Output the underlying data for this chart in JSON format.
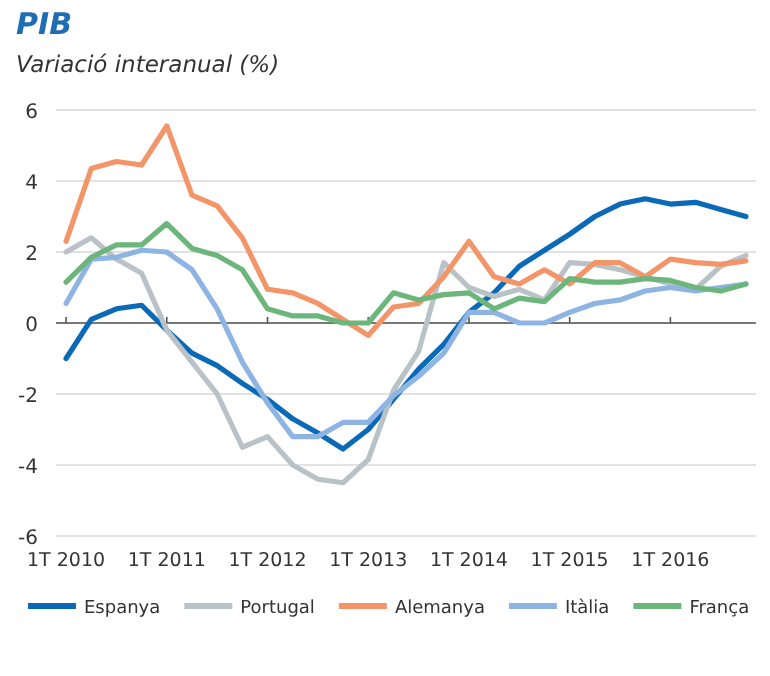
{
  "chart_data": {
    "type": "line",
    "title": "PIB",
    "subtitle": "Variació interanual (%)",
    "categories": [
      "1T 2010",
      null,
      null,
      null,
      "1T 2011",
      null,
      null,
      null,
      "1T 2012",
      null,
      null,
      null,
      "1T 2013",
      null,
      null,
      null,
      "1T 2014",
      null,
      null,
      null,
      "1T 2015",
      null,
      null,
      null,
      "1T 2016",
      null,
      null,
      null
    ],
    "ylim": [
      -6,
      6
    ],
    "yticks": [
      -6,
      -4,
      -2,
      0,
      2,
      4,
      6
    ],
    "grid": "y",
    "legend": "bottom",
    "line_style": "solid",
    "series": [
      {
        "name": "Espanya",
        "color": "#0a6ab7",
        "values": [
          -1.0,
          0.1,
          0.4,
          0.5,
          -0.2,
          -0.85,
          -1.2,
          -1.7,
          -2.15,
          -2.7,
          -3.1,
          -3.55,
          -3.0,
          -2.15,
          -1.3,
          -0.6,
          0.3,
          0.85,
          1.6,
          2.05,
          2.5,
          3.0,
          3.35,
          3.5,
          3.35,
          3.4,
          3.2,
          3.0
        ]
      },
      {
        "name": "Portugal",
        "color": "#b9c2c6",
        "values": [
          2.0,
          2.4,
          1.8,
          1.4,
          -0.2,
          -1.1,
          -2.0,
          -3.5,
          -3.2,
          -4.0,
          -4.4,
          -4.5,
          -3.85,
          -1.9,
          -0.8,
          1.7,
          1.0,
          0.75,
          0.95,
          0.65,
          1.7,
          1.65,
          1.5,
          1.3,
          1.1,
          0.95,
          1.6,
          1.9
        ]
      },
      {
        "name": "Alemanya",
        "color": "#f39568",
        "values": [
          2.3,
          4.35,
          4.55,
          4.45,
          5.55,
          3.6,
          3.3,
          2.4,
          0.95,
          0.85,
          0.55,
          0.1,
          -0.35,
          0.45,
          0.55,
          1.3,
          2.3,
          1.3,
          1.1,
          1.5,
          1.1,
          1.7,
          1.7,
          1.3,
          1.8,
          1.7,
          1.65,
          1.75
        ]
      },
      {
        "name": "Itàlia",
        "color": "#8db4e2",
        "values": [
          0.55,
          1.8,
          1.85,
          2.05,
          2.0,
          1.5,
          0.4,
          -1.1,
          -2.25,
          -3.2,
          -3.2,
          -2.8,
          -2.8,
          -2.05,
          -1.5,
          -0.85,
          0.3,
          0.3,
          0.0,
          0.0,
          0.3,
          0.55,
          0.65,
          0.9,
          1.0,
          0.9,
          1.0,
          1.1
        ]
      },
      {
        "name": "França",
        "color": "#6cb57b",
        "values": [
          1.15,
          1.85,
          2.2,
          2.2,
          2.8,
          2.1,
          1.9,
          1.5,
          0.4,
          0.2,
          0.2,
          0.0,
          0.0,
          0.85,
          0.65,
          0.8,
          0.85,
          0.4,
          0.7,
          0.6,
          1.25,
          1.15,
          1.15,
          1.25,
          1.2,
          1.0,
          0.9,
          1.1
        ]
      }
    ]
  }
}
